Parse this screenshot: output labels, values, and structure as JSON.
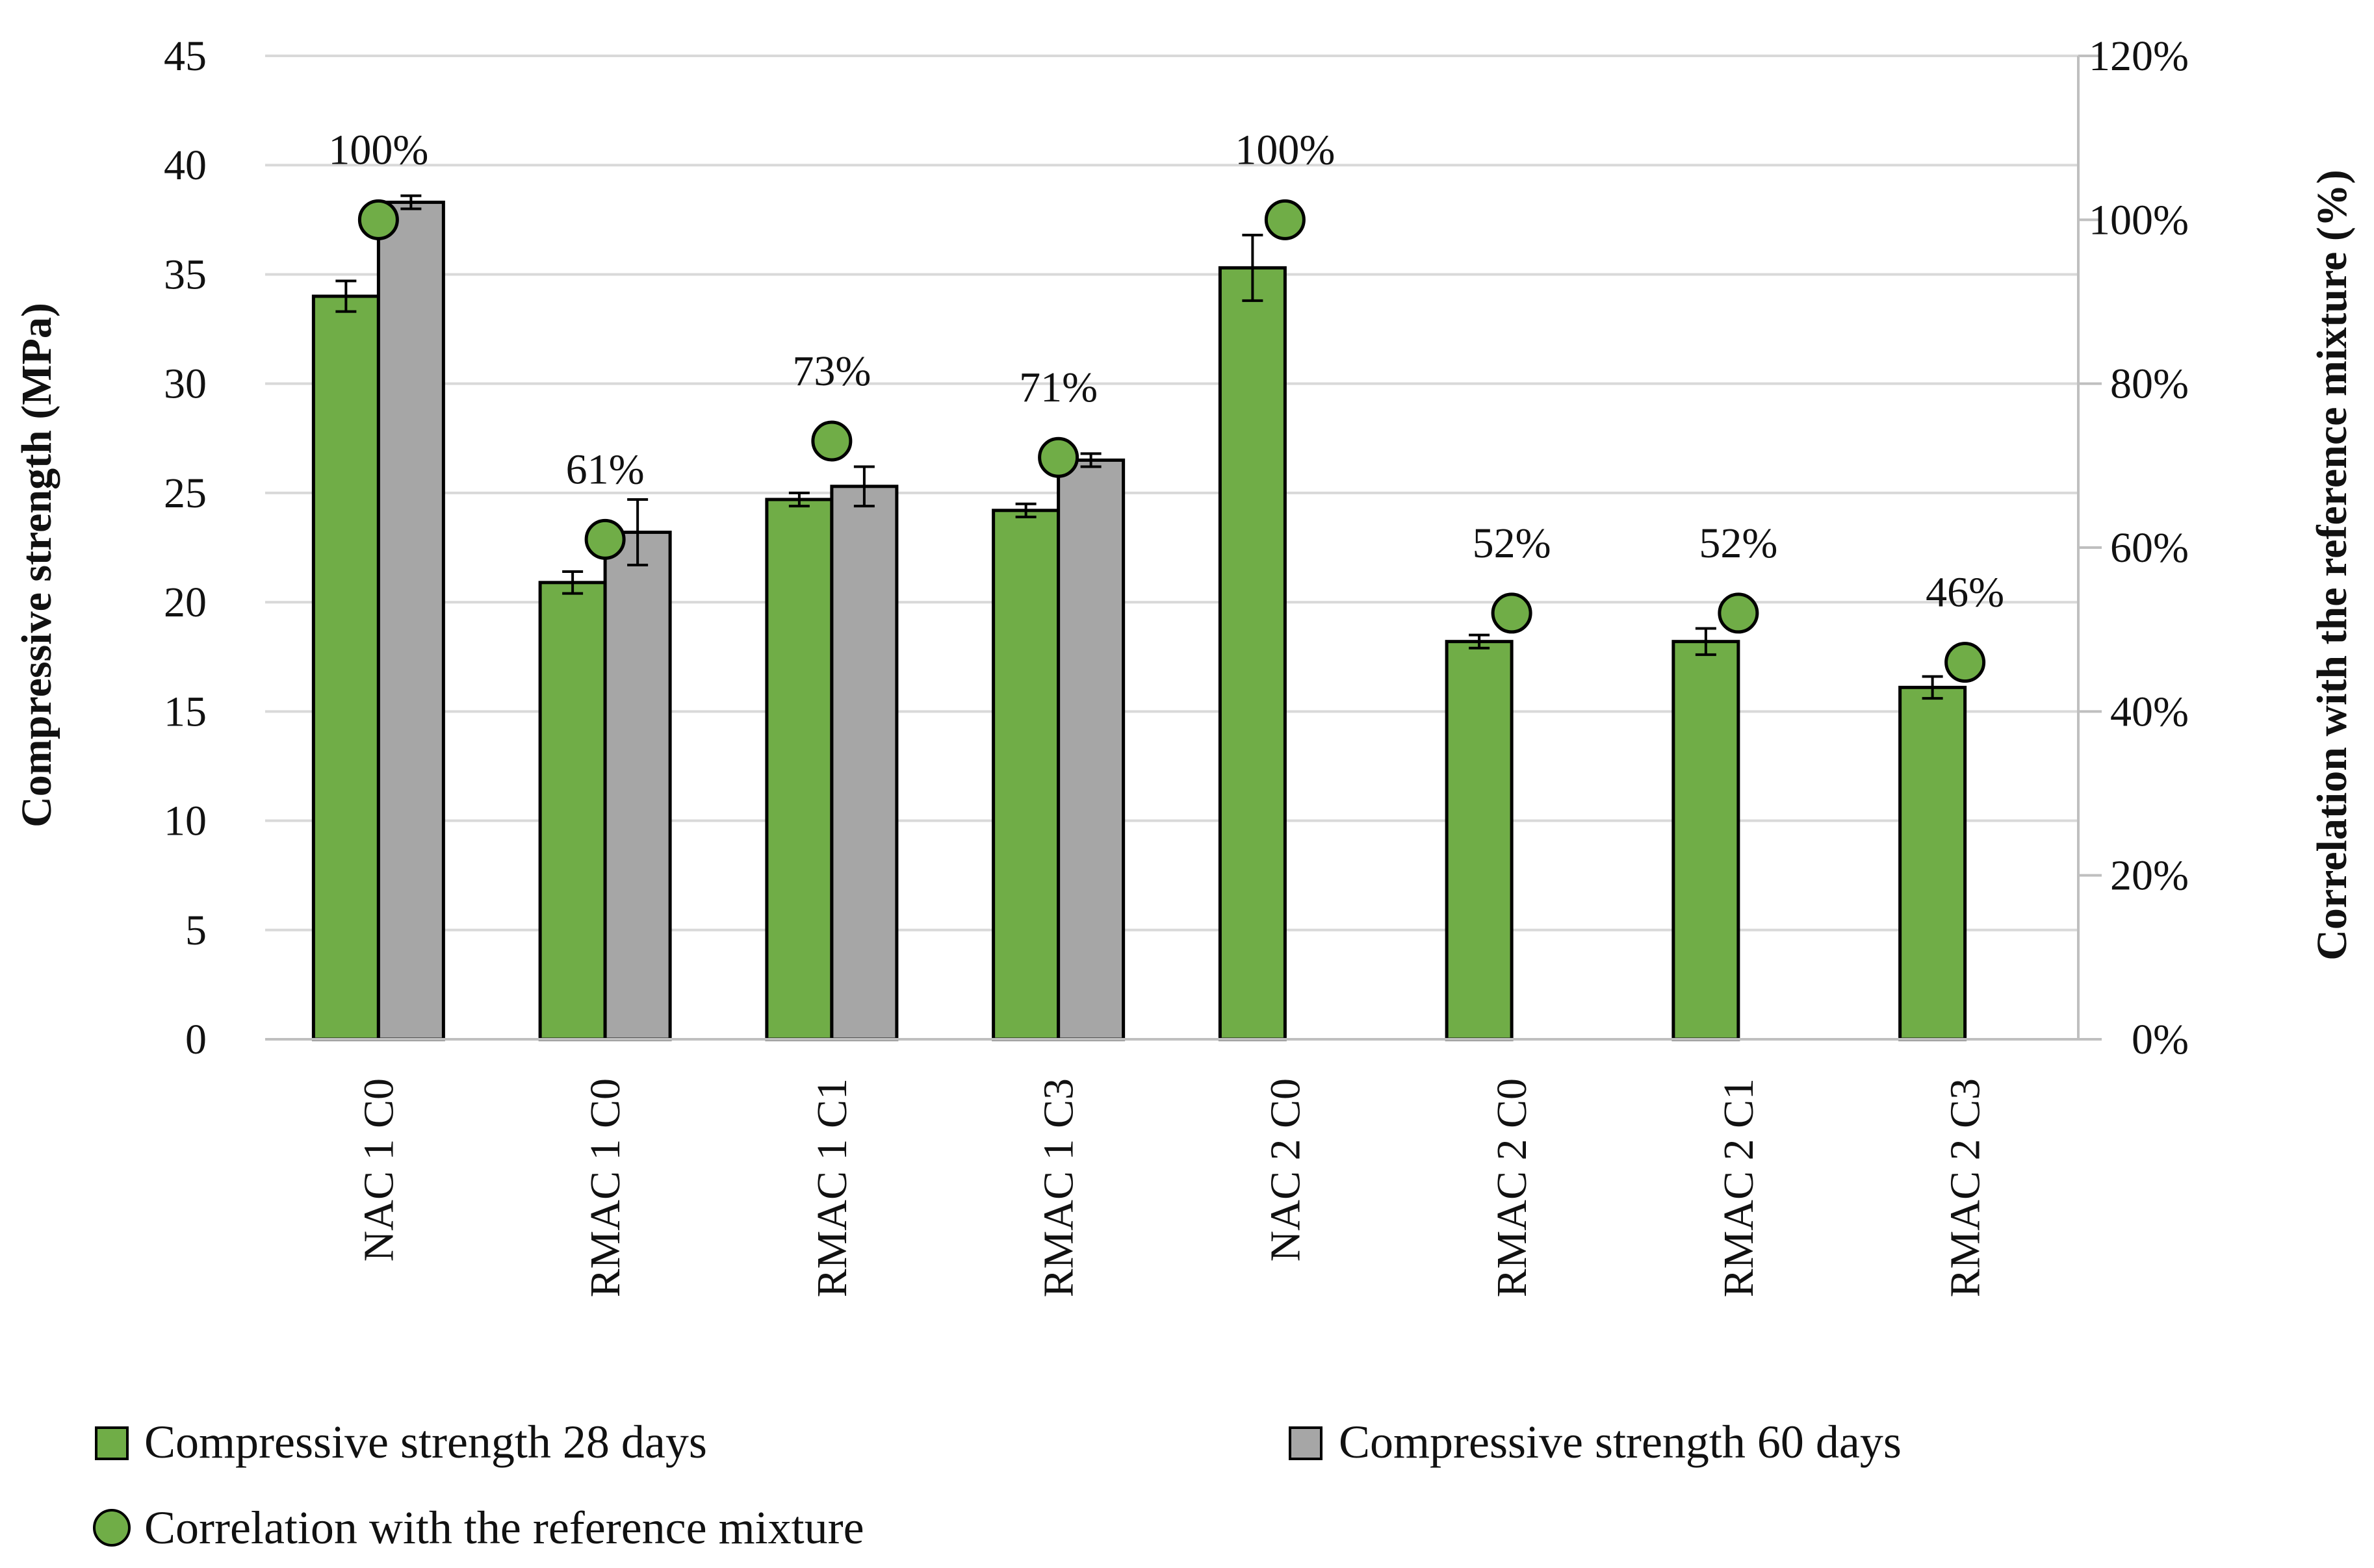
{
  "chart_data": {
    "type": "bar",
    "categories": [
      "NAC 1 C0",
      "RMAC 1 C0",
      "RMAC 1 C1",
      "RMAC 1 C3",
      "NAC 2 C0",
      "RMAC 2 C0",
      "RMAC 2 C1",
      "RMAC 2 C3"
    ],
    "series": [
      {
        "name": "Compressive strength 28 days",
        "kind": "bar",
        "axis": "left",
        "color": "#70ad47",
        "values": [
          34.0,
          20.9,
          24.7,
          24.2,
          35.3,
          18.2,
          18.2,
          16.1
        ],
        "errors": [
          0.7,
          0.5,
          0.3,
          0.3,
          1.5,
          0.3,
          0.6,
          0.5
        ]
      },
      {
        "name": "Compressive strength 60 days",
        "kind": "bar",
        "axis": "left",
        "color": "#a6a6a6",
        "values": [
          38.3,
          23.2,
          25.3,
          26.5,
          null,
          null,
          null,
          null
        ],
        "errors": [
          0.3,
          1.5,
          0.9,
          0.3,
          null,
          null,
          null,
          null
        ]
      },
      {
        "name": "Correlation with the reference mixture",
        "kind": "marker",
        "axis": "right",
        "color": "#70ad47",
        "values": [
          100,
          61,
          73,
          71,
          100,
          52,
          52,
          46
        ],
        "labels": [
          "100%",
          "61%",
          "73%",
          "71%",
          "100%",
          "52%",
          "52%",
          "46%"
        ]
      }
    ],
    "ylabel": "Compressive strength (MPa)",
    "y2label": "Correlation with the reference mixture (%)",
    "ylim": [
      0,
      45
    ],
    "yticks": [
      "0",
      "5",
      "10",
      "15",
      "20",
      "25",
      "30",
      "35",
      "40",
      "45"
    ],
    "y2lim": [
      0,
      120
    ],
    "y2ticks": [
      "0%",
      "20%",
      "40%",
      "60%",
      "80%",
      "100%",
      "120%"
    ],
    "grid": true,
    "legend_position": "bottom"
  }
}
